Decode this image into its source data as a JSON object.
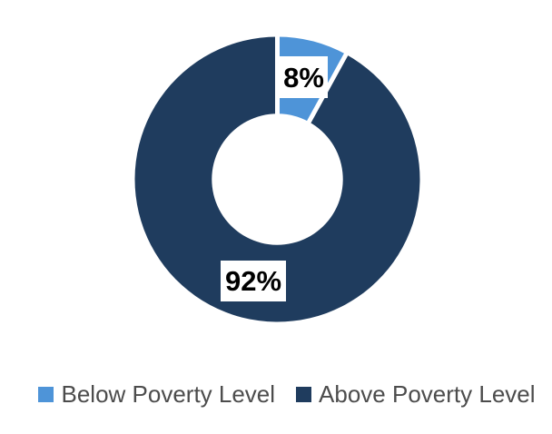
{
  "chart_data": {
    "type": "pie",
    "subtype": "donut",
    "title": "",
    "slices": [
      {
        "label": "Below Poverty Level",
        "value": 8,
        "data_label": "8%",
        "color": "#4E94D8"
      },
      {
        "label": "Above Poverty Level",
        "value": 92,
        "data_label": "92%",
        "color": "#1F3C5E"
      }
    ],
    "start_angle_deg": 0,
    "direction": "clockwise",
    "hole_radius_ratio": 0.46,
    "separator_color": "#FFFFFF",
    "data_labels": {
      "text_color": "#000000",
      "background_color": "#FFFFFF",
      "bold": true
    },
    "legend": {
      "position": "bottom",
      "text_color": "#4C4C4C"
    },
    "background_color": "#FFFFFF"
  }
}
